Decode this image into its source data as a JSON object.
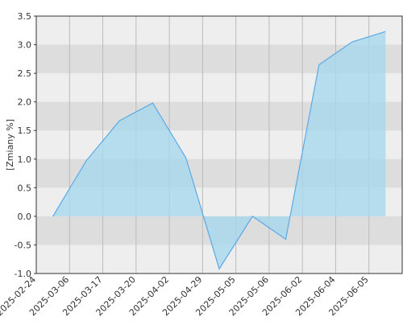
{
  "chart_data": {
    "type": "area",
    "y_label": "[Zmiany %]",
    "categories": [
      "2025-02-24",
      "2025-03-06",
      "2025-03-17",
      "2025-03-20",
      "2025-04-02",
      "2025-04-29",
      "2025-05-05",
      "2025-05-06",
      "2025-06-02",
      "2025-06-04",
      "2025-06-05"
    ],
    "values": [
      0.0,
      0.97,
      1.67,
      1.98,
      1.02,
      -0.92,
      0.0,
      -0.4,
      2.65,
      3.05,
      3.23
    ],
    "color": "#5aaae6",
    "fill": "#a8d8ec",
    "ylim": [
      -1,
      3.5
    ],
    "yticks": [
      {
        "value": -1,
        "label": "-1.0"
      },
      {
        "value": -0.5,
        "label": "-0.5"
      },
      {
        "value": 0,
        "label": "0.0"
      },
      {
        "value": 0.5,
        "label": "0.5"
      },
      {
        "value": 1,
        "label": "1.0"
      },
      {
        "value": 1.5,
        "label": "1.5"
      },
      {
        "value": 2,
        "label": "2.0"
      },
      {
        "value": 2.5,
        "label": "2.5"
      },
      {
        "value": 3,
        "label": "3.0"
      },
      {
        "value": 3.5,
        "label": "3.5"
      }
    ],
    "grid": true
  }
}
